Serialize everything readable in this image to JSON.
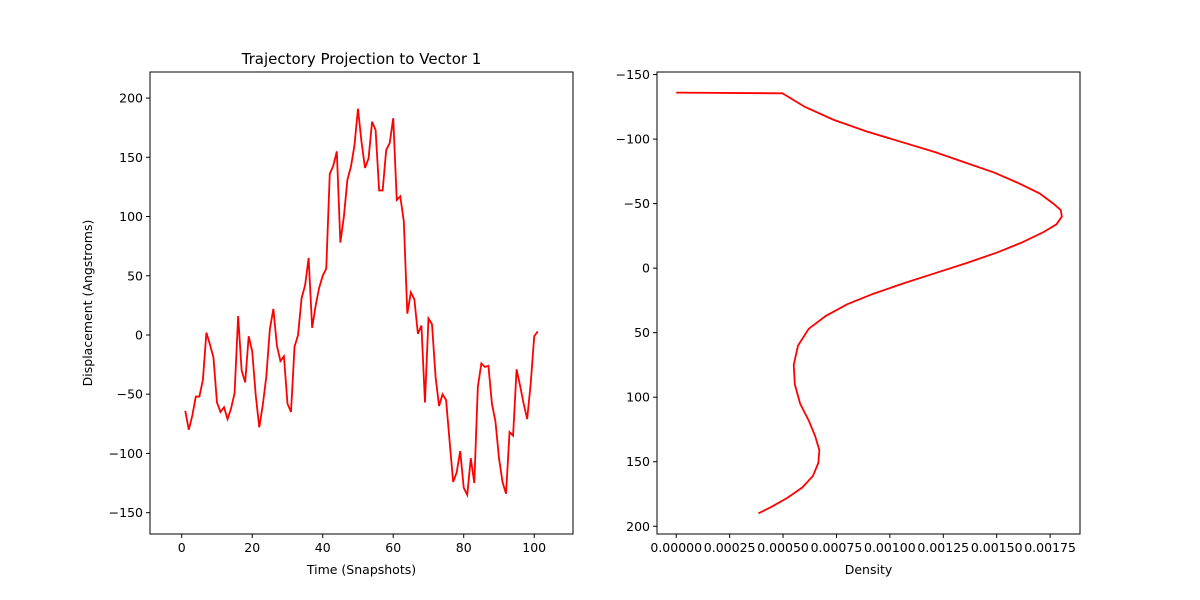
{
  "chart_data": [
    {
      "type": "line",
      "title": "Trajectory Projection to Vector 1",
      "xlabel": "Time (Snapshots)",
      "ylabel": "Displacement (Angstroms)",
      "xlim": [
        -9,
        111
      ],
      "ylim": [
        -168,
        222
      ],
      "xticks": [
        0,
        20,
        40,
        60,
        80,
        100
      ],
      "yticks": [
        -150,
        -100,
        -50,
        0,
        50,
        100,
        150,
        200
      ],
      "grid": false,
      "color": "#ff0000",
      "series": [
        {
          "x": [
            1,
            2,
            3,
            4,
            5,
            6,
            7,
            8,
            9,
            10,
            11,
            12,
            13,
            14,
            15,
            16,
            17,
            18,
            19,
            20,
            21,
            22,
            23,
            24,
            25,
            26,
            27,
            28,
            29,
            30,
            31,
            32,
            33,
            34,
            35,
            36,
            37,
            38,
            39,
            40,
            41,
            42,
            43,
            44,
            45,
            46,
            47,
            48,
            49,
            50,
            51,
            52,
            53,
            54,
            55,
            56,
            57,
            58,
            59,
            60,
            61,
            62,
            63,
            64,
            65,
            66,
            67,
            68,
            69,
            70,
            71,
            72,
            73,
            74,
            75,
            76,
            77,
            78,
            79,
            80,
            81,
            82,
            83,
            84,
            85,
            86,
            87,
            88,
            89,
            90,
            91,
            92,
            93,
            94,
            95,
            96,
            97,
            98,
            99,
            100,
            101
          ],
          "y": [
            -64,
            -80,
            -68,
            -52,
            -52,
            -38,
            2,
            -8,
            -19,
            -57,
            -65,
            -61,
            -71,
            -62,
            -49,
            16,
            -30,
            -40,
            -1,
            -14,
            -51,
            -78,
            -59,
            -35,
            5,
            22,
            -9,
            -22,
            -18,
            -58,
            -65,
            -10,
            0,
            31,
            42,
            65,
            6,
            25,
            40,
            50,
            56,
            136,
            143,
            155,
            78,
            100,
            131,
            142,
            160,
            191,
            163,
            141,
            149,
            180,
            173,
            122,
            122,
            156,
            162,
            183,
            114,
            117,
            96,
            18,
            36,
            30,
            1,
            8,
            -57,
            14,
            9,
            -35,
            -60,
            -50,
            -55,
            -90,
            -124,
            -116,
            -98,
            -129,
            -135,
            -104,
            -125,
            -44,
            -24,
            -27,
            -26,
            -58,
            -73,
            -104,
            -124,
            -134,
            -82,
            -85,
            -29,
            -43,
            -58,
            -71,
            -41,
            -1,
            3
          ]
        }
      ]
    },
    {
      "type": "line",
      "title": "",
      "xlabel": "Density",
      "ylabel": "",
      "xlim": [
        -9e-05,
        0.00189
      ],
      "ylim": [
        -152,
        206
      ],
      "y_inverted": true,
      "xticks": [
        "0.00000",
        "0.00025",
        "0.00050",
        "0.00075",
        "0.00100",
        "0.00125",
        "0.00150",
        "0.00175"
      ],
      "xtick_values": [
        0,
        0.00025,
        0.0005,
        0.00075,
        0.001,
        0.00125,
        0.0015,
        0.00175
      ],
      "yticks": [
        -150,
        -100,
        -50,
        0,
        50,
        100,
        150,
        200
      ],
      "grid": false,
      "color": "#ff0000",
      "series": [
        {
          "x": [
            0.0,
            0.000497,
            0.000602,
            0.000736,
            0.00089,
            0.00105,
            0.00121,
            0.00135,
            0.00149,
            0.0016,
            0.0017,
            0.001765,
            0.0018,
            0.001805,
            0.00178,
            0.00172,
            0.00162,
            0.0015,
            0.00136,
            0.00121,
            0.00106,
            0.00092,
            0.0008,
            0.0007,
            0.00062,
            0.00057,
            0.00055,
            0.000555,
            0.00058,
            0.00062,
            0.00065,
            0.00067,
            0.000665,
            0.00064,
            0.00059,
            0.00052,
            0.000445,
            0.000385
          ],
          "y": [
            -136,
            -135.5,
            -125,
            -115,
            -106,
            -98,
            -90,
            -82,
            -74,
            -66,
            -58,
            -50,
            -45,
            -40,
            -34,
            -28,
            -20,
            -12,
            -4,
            4,
            12,
            20,
            28,
            37,
            47,
            60,
            75,
            90,
            105,
            118,
            130,
            141,
            151,
            161,
            170,
            178,
            185,
            190
          ]
        }
      ]
    }
  ]
}
